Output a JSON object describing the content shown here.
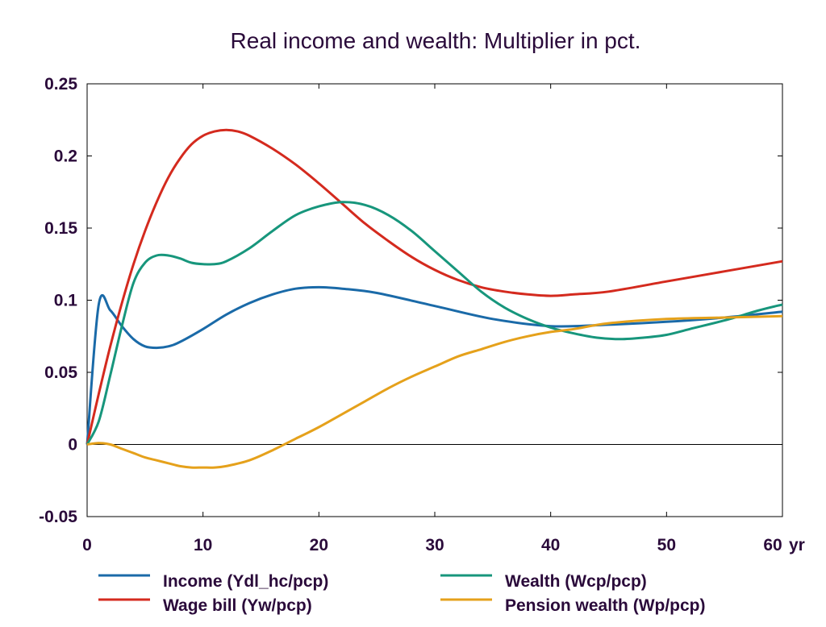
{
  "chart_data": {
    "type": "line",
    "title": "Real income and wealth: Multiplier in pct.",
    "xlabel": "",
    "ylabel": "",
    "x_unit_label": "yr",
    "xlim": [
      0,
      60
    ],
    "ylim": [
      -0.05,
      0.25
    ],
    "x_ticks": [
      0,
      10,
      20,
      30,
      40,
      50,
      60
    ],
    "x_tick_labels": [
      "0",
      "10",
      "20",
      "30",
      "40",
      "50",
      "60"
    ],
    "y_ticks": [
      -0.05,
      0,
      0.05,
      0.1,
      0.15,
      0.2,
      0.25
    ],
    "y_tick_labels": [
      "-0.05",
      "0",
      "0.05",
      "0.1",
      "0.15",
      "0.2",
      "0.25"
    ],
    "grid": false,
    "zero_line": true,
    "legend_position": "bottom",
    "series": [
      {
        "name": "Income (Ydl_hc/pcp)",
        "color": "#1a6aa8",
        "points": [
          [
            0,
            0
          ],
          [
            1,
            0.097
          ],
          [
            2,
            0.093
          ],
          [
            3,
            0.082
          ],
          [
            4,
            0.073
          ],
          [
            5,
            0.068
          ],
          [
            6,
            0.067
          ],
          [
            7,
            0.068
          ],
          [
            8,
            0.071
          ],
          [
            10,
            0.08
          ],
          [
            12,
            0.09
          ],
          [
            14,
            0.098
          ],
          [
            16,
            0.104
          ],
          [
            18,
            0.108
          ],
          [
            20,
            0.109
          ],
          [
            22,
            0.108
          ],
          [
            25,
            0.105
          ],
          [
            30,
            0.096
          ],
          [
            35,
            0.087
          ],
          [
            40,
            0.082
          ],
          [
            45,
            0.083
          ],
          [
            50,
            0.085
          ],
          [
            55,
            0.088
          ],
          [
            60,
            0.092
          ]
        ]
      },
      {
        "name": "Wage bill (Yw/pcp)",
        "color": "#d42a1e",
        "points": [
          [
            0,
            0
          ],
          [
            1,
            0.035
          ],
          [
            2,
            0.068
          ],
          [
            3,
            0.098
          ],
          [
            4,
            0.125
          ],
          [
            5,
            0.148
          ],
          [
            6,
            0.168
          ],
          [
            7,
            0.185
          ],
          [
            8,
            0.198
          ],
          [
            9,
            0.208
          ],
          [
            10,
            0.214
          ],
          [
            11,
            0.217
          ],
          [
            12,
            0.218
          ],
          [
            13,
            0.217
          ],
          [
            14,
            0.214
          ],
          [
            16,
            0.205
          ],
          [
            18,
            0.194
          ],
          [
            20,
            0.181
          ],
          [
            22,
            0.167
          ],
          [
            24,
            0.153
          ],
          [
            26,
            0.141
          ],
          [
            28,
            0.13
          ],
          [
            30,
            0.121
          ],
          [
            32,
            0.114
          ],
          [
            34,
            0.109
          ],
          [
            36,
            0.106
          ],
          [
            38,
            0.104
          ],
          [
            40,
            0.103
          ],
          [
            42,
            0.104
          ],
          [
            45,
            0.106
          ],
          [
            50,
            0.113
          ],
          [
            55,
            0.12
          ],
          [
            60,
            0.127
          ]
        ]
      },
      {
        "name": "Wealth (Wcp/pcp)",
        "color": "#17967c",
        "points": [
          [
            0,
            0
          ],
          [
            1,
            0.016
          ],
          [
            2,
            0.048
          ],
          [
            3,
            0.082
          ],
          [
            4,
            0.112
          ],
          [
            5,
            0.126
          ],
          [
            6,
            0.131
          ],
          [
            7,
            0.131
          ],
          [
            8,
            0.129
          ],
          [
            9,
            0.126
          ],
          [
            10,
            0.125
          ],
          [
            11,
            0.125
          ],
          [
            12,
            0.127
          ],
          [
            14,
            0.136
          ],
          [
            16,
            0.148
          ],
          [
            18,
            0.159
          ],
          [
            20,
            0.165
          ],
          [
            22,
            0.168
          ],
          [
            24,
            0.166
          ],
          [
            26,
            0.159
          ],
          [
            28,
            0.148
          ],
          [
            30,
            0.134
          ],
          [
            32,
            0.12
          ],
          [
            34,
            0.106
          ],
          [
            36,
            0.095
          ],
          [
            38,
            0.087
          ],
          [
            40,
            0.081
          ],
          [
            42,
            0.077
          ],
          [
            44,
            0.074
          ],
          [
            46,
            0.073
          ],
          [
            48,
            0.074
          ],
          [
            50,
            0.076
          ],
          [
            52,
            0.08
          ],
          [
            55,
            0.086
          ],
          [
            58,
            0.093
          ],
          [
            60,
            0.097
          ]
        ]
      },
      {
        "name": "Pension wealth (Wp/pcp)",
        "color": "#e5a11b",
        "points": [
          [
            0,
            0
          ],
          [
            1,
            0.001
          ],
          [
            2,
            0
          ],
          [
            3,
            -0.003
          ],
          [
            4,
            -0.006
          ],
          [
            5,
            -0.009
          ],
          [
            6,
            -0.011
          ],
          [
            7,
            -0.013
          ],
          [
            8,
            -0.015
          ],
          [
            9,
            -0.016
          ],
          [
            10,
            -0.016
          ],
          [
            11,
            -0.016
          ],
          [
            12,
            -0.015
          ],
          [
            14,
            -0.011
          ],
          [
            16,
            -0.004
          ],
          [
            18,
            0.004
          ],
          [
            20,
            0.012
          ],
          [
            22,
            0.021
          ],
          [
            24,
            0.03
          ],
          [
            26,
            0.039
          ],
          [
            28,
            0.047
          ],
          [
            30,
            0.054
          ],
          [
            32,
            0.061
          ],
          [
            34,
            0.066
          ],
          [
            36,
            0.071
          ],
          [
            38,
            0.075
          ],
          [
            40,
            0.078
          ],
          [
            42,
            0.08
          ],
          [
            45,
            0.084
          ],
          [
            50,
            0.087
          ],
          [
            55,
            0.088
          ],
          [
            60,
            0.089
          ]
        ]
      }
    ]
  }
}
